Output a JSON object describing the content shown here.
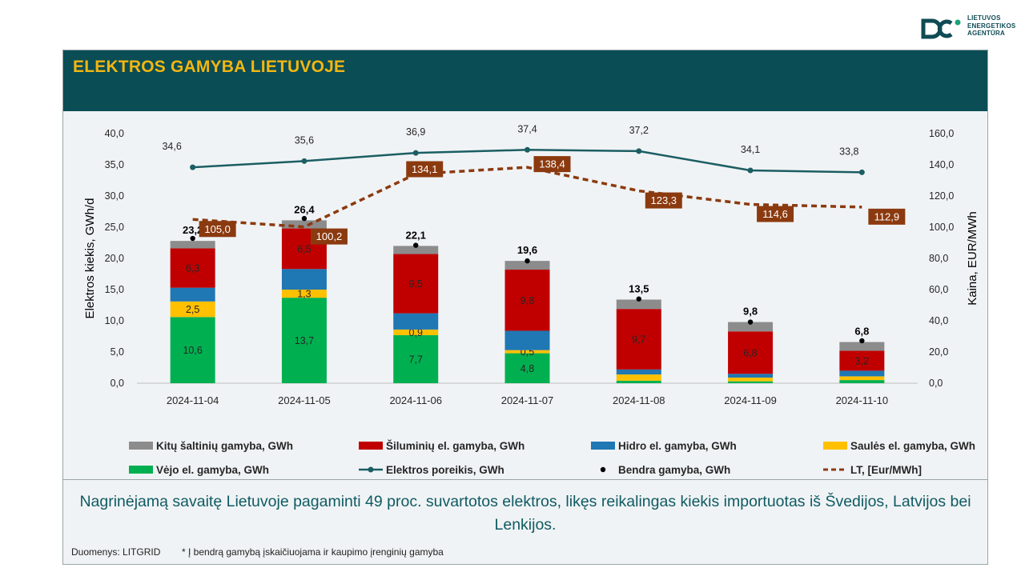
{
  "brand": {
    "line1": "LIETUVOS",
    "line2": "ENERGETIKOS",
    "line3": "AGENTŪRA",
    "logo_icon": "lea-logo-icon",
    "color": "#0f4b54"
  },
  "title": "ELEKTROS GAMYBA LIETUVOJE",
  "summary": "Nagrinėjamą savaitę Lietuvoje pagaminti 49 proc. suvartotos elektros, likęs reikalingas kiekis importuotas iš Švedijos, Latvijos bei Lenkijos.",
  "source_note": "Duomenys: LITGRID",
  "footnote": "* Į bendrą gamybą įskaičiuojama ir kaupimo įrenginių gamyba",
  "colors": {
    "header_bg": "#0a4d55",
    "title": "#f4b611",
    "other": "#8c8c8c",
    "thermal": "#c00000",
    "hydro": "#1f77b4",
    "solar": "#ffc000",
    "wind": "#00b050",
    "demand": "#1b5e63",
    "price": "#8b3a0f"
  },
  "chart_data": {
    "type": "bar",
    "stacked": true,
    "categories": [
      "2024-11-04",
      "2024-11-05",
      "2024-11-06",
      "2024-11-07",
      "2024-11-08",
      "2024-11-09",
      "2024-11-10"
    ],
    "ylabel": "Elektros kiekis, GWh/d",
    "y2label": "Kaina, EUR/MWh",
    "ylim": [
      0,
      40
    ],
    "y2lim": [
      0,
      160
    ],
    "yticks": [
      "0,0",
      "5,0",
      "10,0",
      "15,0",
      "20,0",
      "25,0",
      "30,0",
      "35,0",
      "40,0"
    ],
    "y2ticks": [
      "0,0",
      "20,0",
      "40,0",
      "60,0",
      "80,0",
      "100,0",
      "120,0",
      "140,0",
      "160,0"
    ],
    "grid": false,
    "legend_position": "bottom",
    "series": [
      {
        "name": "Vėjo el. gamyba, GWh",
        "key": "wind",
        "values": [
          10.6,
          13.7,
          7.7,
          4.8,
          0.4,
          0.3,
          0.5
        ],
        "labels": [
          "10,6",
          "13,7",
          "7,7",
          "4,8",
          "",
          "",
          ""
        ]
      },
      {
        "name": "Saulės el. gamyba, GWh",
        "key": "solar",
        "values": [
          2.5,
          1.3,
          0.9,
          0.5,
          1.0,
          0.6,
          0.6
        ],
        "labels": [
          "2,5",
          "1,3",
          "0,9",
          "0,5",
          "",
          "",
          ""
        ]
      },
      {
        "name": "Hidro el. gamyba, GWh",
        "key": "hydro",
        "values": [
          2.2,
          3.3,
          2.6,
          3.1,
          0.8,
          0.6,
          0.9
        ],
        "labels": [
          "",
          "",
          "",
          "",
          "",
          "",
          ""
        ]
      },
      {
        "name": "Šiluminių el. gamyba, GWh",
        "key": "thermal",
        "values": [
          6.3,
          6.5,
          9.5,
          9.8,
          9.7,
          6.8,
          3.2
        ],
        "labels": [
          "6,3",
          "6,5",
          "9,5",
          "9,8",
          "9,7",
          "6,8",
          "3,2"
        ]
      },
      {
        "name": "Kitų šaltinių gamyba,  GWh",
        "key": "other",
        "values": [
          1.2,
          1.3,
          1.3,
          1.4,
          1.5,
          1.5,
          1.4
        ],
        "labels": [
          "",
          "",
          "",
          "",
          "",
          "",
          ""
        ]
      }
    ],
    "total": {
      "name": "Bendra gamyba, GWh",
      "values": [
        23.2,
        26.4,
        22.1,
        19.6,
        13.5,
        9.8,
        6.8
      ],
      "labels": [
        "23,2",
        "26,4",
        "22,1",
        "19,6",
        "13,5",
        "9,8",
        "6,8"
      ]
    },
    "demand": {
      "name": "Elektros poreikis, GWh",
      "values": [
        34.6,
        35.6,
        36.9,
        37.4,
        37.2,
        34.1,
        33.8
      ],
      "labels": [
        "34,6",
        "35,6",
        "36,9",
        "37,4",
        "37,2",
        "34,1",
        "33,8"
      ]
    },
    "price": {
      "name": "LT, [Eur/MWh]",
      "axis": "secondary",
      "values": [
        105.0,
        100.2,
        134.1,
        138.4,
        123.3,
        114.6,
        112.9
      ],
      "labels": [
        "105,0",
        "100,2",
        "134,1",
        "138,4",
        "123,3",
        "114,6",
        "112,9"
      ]
    },
    "legend_order": [
      "Kitų šaltinių gamyba,  GWh",
      "Šiluminių el. gamyba, GWh",
      "Hidro el. gamyba, GWh",
      "Saulės el. gamyba, GWh",
      "Vėjo el. gamyba, GWh",
      "Elektros poreikis, GWh",
      "Bendra gamyba, GWh",
      "LT, [Eur/MWh]"
    ]
  }
}
